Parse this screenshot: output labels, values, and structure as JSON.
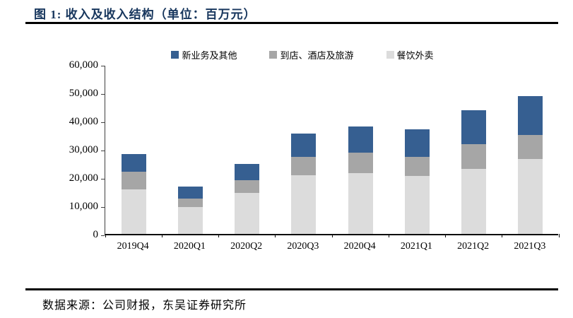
{
  "header": {
    "title": "图 1:  收入及收入结构（单位：百万元）"
  },
  "footer": {
    "source": "数据来源：公司财报，东吴证券研究所"
  },
  "colors": {
    "title_navy": "#17365D",
    "rule_black": "#000000",
    "series_new_business_blue": "#365F91",
    "series_instore_gray": "#A6A6A6",
    "series_delivery_lightgray": "#DCDCDC",
    "axis_line": "#0d0d0d",
    "text_black": "#000000"
  },
  "chart_data": {
    "type": "bar",
    "stacked": true,
    "title": "图 1:  收入及收入结构（单位：百万元）",
    "xlabel": "",
    "ylabel": "",
    "unit": "百万元",
    "categories": [
      "2019Q4",
      "2020Q1",
      "2020Q2",
      "2020Q3",
      "2020Q4",
      "2021Q1",
      "2021Q2",
      "2021Q3"
    ],
    "series": [
      {
        "name": "餐饮外卖",
        "color": "#DCDCDC",
        "values": [
          15726,
          9486,
          14544,
          20693,
          21538,
          20575,
          23125,
          26485
        ]
      },
      {
        "name": "到店、酒店及旅游",
        "color": "#A6A6A6",
        "values": [
          6364,
          3095,
          4521,
          6479,
          7135,
          6584,
          8602,
          8621
        ]
      },
      {
        "name": "新业务及其他",
        "color": "#365F91",
        "values": [
          6147,
          4173,
          5617,
          8217,
          9273,
          9947,
          12057,
          13717
        ]
      }
    ],
    "stack_order_bottom_to_top": [
      "餐饮外卖",
      "到店、酒店及旅游",
      "新业务及其他"
    ],
    "legend_order": [
      "新业务及其他",
      "到店、酒店及旅游",
      "餐饮外卖"
    ],
    "legend_position": "top-center",
    "ylim": [
      0,
      60000
    ],
    "ytick_interval": 10000,
    "ytick_labels": [
      "0",
      "10,000",
      "20,000",
      "30,000",
      "40,000",
      "50,000",
      "60,000"
    ],
    "grid": false
  }
}
